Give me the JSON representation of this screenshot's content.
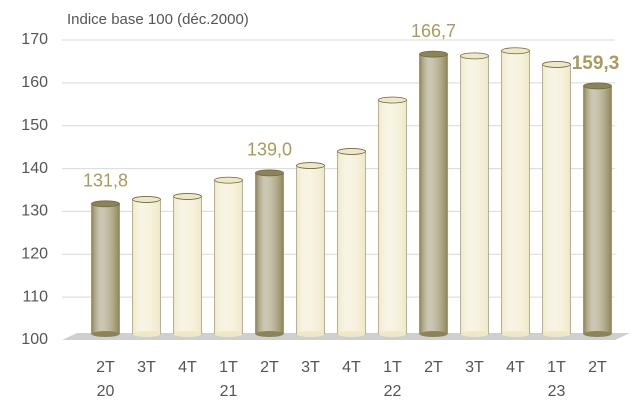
{
  "chart_data": {
    "type": "bar",
    "title": "Indice base 100 (déc.2000)",
    "categories": [
      "2T",
      "3T",
      "4T",
      "1T",
      "2T",
      "3T",
      "4T",
      "1T",
      "2T",
      "3T",
      "4T",
      "1T",
      "2T"
    ],
    "years": [
      "20",
      null,
      null,
      "21",
      null,
      null,
      null,
      "22",
      null,
      null,
      null,
      "23",
      null
    ],
    "values": [
      131.8,
      132.8,
      133.5,
      137.3,
      139.0,
      140.7,
      144.0,
      156.0,
      166.7,
      166.3,
      167.5,
      164.3,
      159.3
    ],
    "value_labels": [
      "131,8",
      null,
      null,
      null,
      "139,0",
      null,
      null,
      null,
      "166,7",
      null,
      null,
      null,
      "159,3"
    ],
    "colors": [
      "#8c8456",
      "#efe8c6",
      "#efe8c6",
      "#efe8c6",
      "#8c8456",
      "#efe8c6",
      "#efe8c6",
      "#efe8c6",
      "#8c8456",
      "#efe8c6",
      "#efe8c6",
      "#efe8c6",
      "#8c8456"
    ],
    "label_color": "#a99b5c",
    "ylim": [
      100,
      170
    ],
    "yticks": [
      100,
      110,
      120,
      130,
      140,
      150,
      160,
      170
    ],
    "grid": true
  }
}
